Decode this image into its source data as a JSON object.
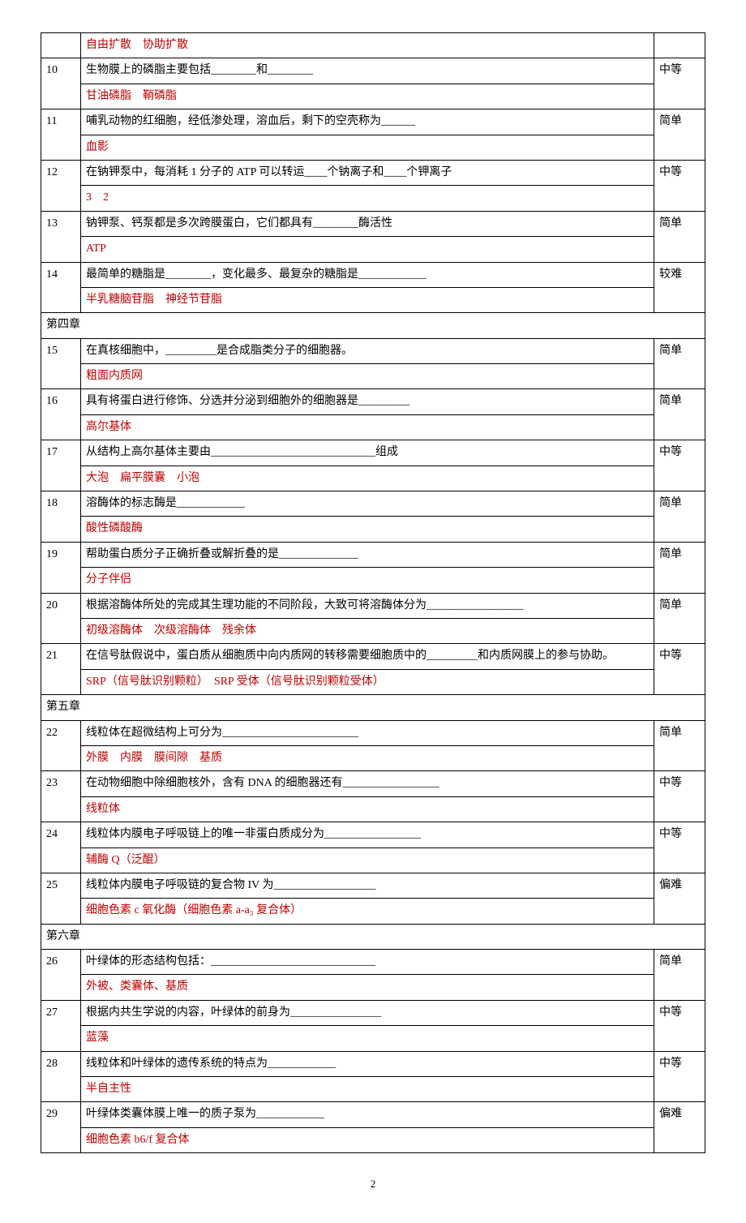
{
  "page_number": "2",
  "colors": {
    "text": "#000000",
    "answer": "#c00000",
    "border": "#000000",
    "bg": "#ffffff"
  },
  "rows": [
    {
      "type": "answer_only",
      "answer": "自由扩散　协助扩散"
    },
    {
      "type": "qa",
      "num": "10",
      "question": "生物膜上的磷脂主要包括________和________",
      "answer": "甘油磷脂　鞘磷脂",
      "diff": "中等"
    },
    {
      "type": "qa",
      "num": "11",
      "question": "哺乳动物的红细胞，经低渗处理，溶血后，剩下的空壳称为______",
      "answer": "血影",
      "diff": "简单"
    },
    {
      "type": "qa",
      "num": "12",
      "question": "在钠钾泵中，每消耗 1 分子的 ATP 可以转运____个钠离子和____个钾离子",
      "answer": "3　2",
      "diff": "中等"
    },
    {
      "type": "qa",
      "num": "13",
      "question": "钠钾泵、钙泵都是多次跨膜蛋白，它们都具有________酶活性",
      "answer": "ATP",
      "diff": "简单"
    },
    {
      "type": "qa",
      "num": "14",
      "question": "最简单的糖脂是________，变化最多、最复杂的糖脂是____________",
      "answer": "半乳糖脑苷脂　神经节苷脂",
      "diff": "较难"
    },
    {
      "type": "chapter",
      "label": "第四章"
    },
    {
      "type": "qa",
      "num": "15",
      "question": "在真核细胞中，_________是合成脂类分子的细胞器。",
      "answer": "粗面内质网",
      "diff": "简单"
    },
    {
      "type": "qa",
      "num": "16",
      "question": "具有将蛋白进行修饰、分选并分泌到细胞外的细胞器是_________",
      "answer": "高尔基体",
      "diff": "简单"
    },
    {
      "type": "qa",
      "num": "17",
      "question": "从结构上高尔基体主要由_____________________________组成",
      "answer": "大泡　扁平膜囊　小泡",
      "diff": "中等"
    },
    {
      "type": "qa",
      "num": "18",
      "question": "溶酶体的标志酶是____________",
      "answer": "酸性磷酸酶",
      "diff": "简单"
    },
    {
      "type": "qa",
      "num": "19",
      "question": "帮助蛋白质分子正确折叠或解折叠的是______________",
      "answer": "分子伴侣",
      "diff": "简单"
    },
    {
      "type": "qa",
      "num": "20",
      "question": "根据溶酶体所处的完成其生理功能的不同阶段，大致可将溶酶体分为_________________",
      "answer": "初级溶酶体　次级溶酶体　残余体",
      "diff": "简单"
    },
    {
      "type": "qa",
      "num": "21",
      "question": "在信号肽假说中，蛋白质从细胞质中向内质网的转移需要细胞质中的_________和内质网膜上的参与协助。",
      "answer": "SRP（信号肽识别颗粒）　SRP 受体（信号肽识别颗粒受体）",
      "diff": "中等"
    },
    {
      "type": "chapter",
      "label": "第五章"
    },
    {
      "type": "qa",
      "num": "22",
      "question": "线粒体在超微结构上可分为________________________",
      "answer": "外膜　内膜　膜间隙　基质",
      "diff": "简单"
    },
    {
      "type": "qa",
      "num": "23",
      "question": "在动物细胞中除细胞核外，含有 DNA 的细胞器还有_________________",
      "answer": "线粒体",
      "diff": "中等"
    },
    {
      "type": "qa",
      "num": "24",
      "question": "线粒体内膜电子呼吸链上的唯一非蛋白质成分为_________________",
      "answer": "辅酶 Q（泛醌）",
      "diff": "中等"
    },
    {
      "type": "qa",
      "num": "25",
      "question": "线粒体内膜电子呼吸链的复合物 IV 为__________________",
      "answer": "细胞色素 c 氧化酶（细胞色素 a-a₃ 复合体）",
      "diff": "偏难"
    },
    {
      "type": "chapter",
      "label": "第六章"
    },
    {
      "type": "qa",
      "num": "26",
      "question": "叶绿体的形态结构包括：_____________________________",
      "answer": "外被、类囊体、基质",
      "diff": "简单"
    },
    {
      "type": "qa",
      "num": "27",
      "question": "根据内共生学说的内容，叶绿体的前身为________________",
      "answer": "蓝藻",
      "diff": "中等"
    },
    {
      "type": "qa",
      "num": "28",
      "question": "线粒体和叶绿体的遗传系统的特点为____________",
      "answer": "半自主性",
      "diff": "中等"
    },
    {
      "type": "qa",
      "num": "29",
      "question": "叶绿体类囊体膜上唯一的质子泵为____________",
      "answer": "细胞色素 b6/f 复合体",
      "diff": "偏难"
    }
  ]
}
